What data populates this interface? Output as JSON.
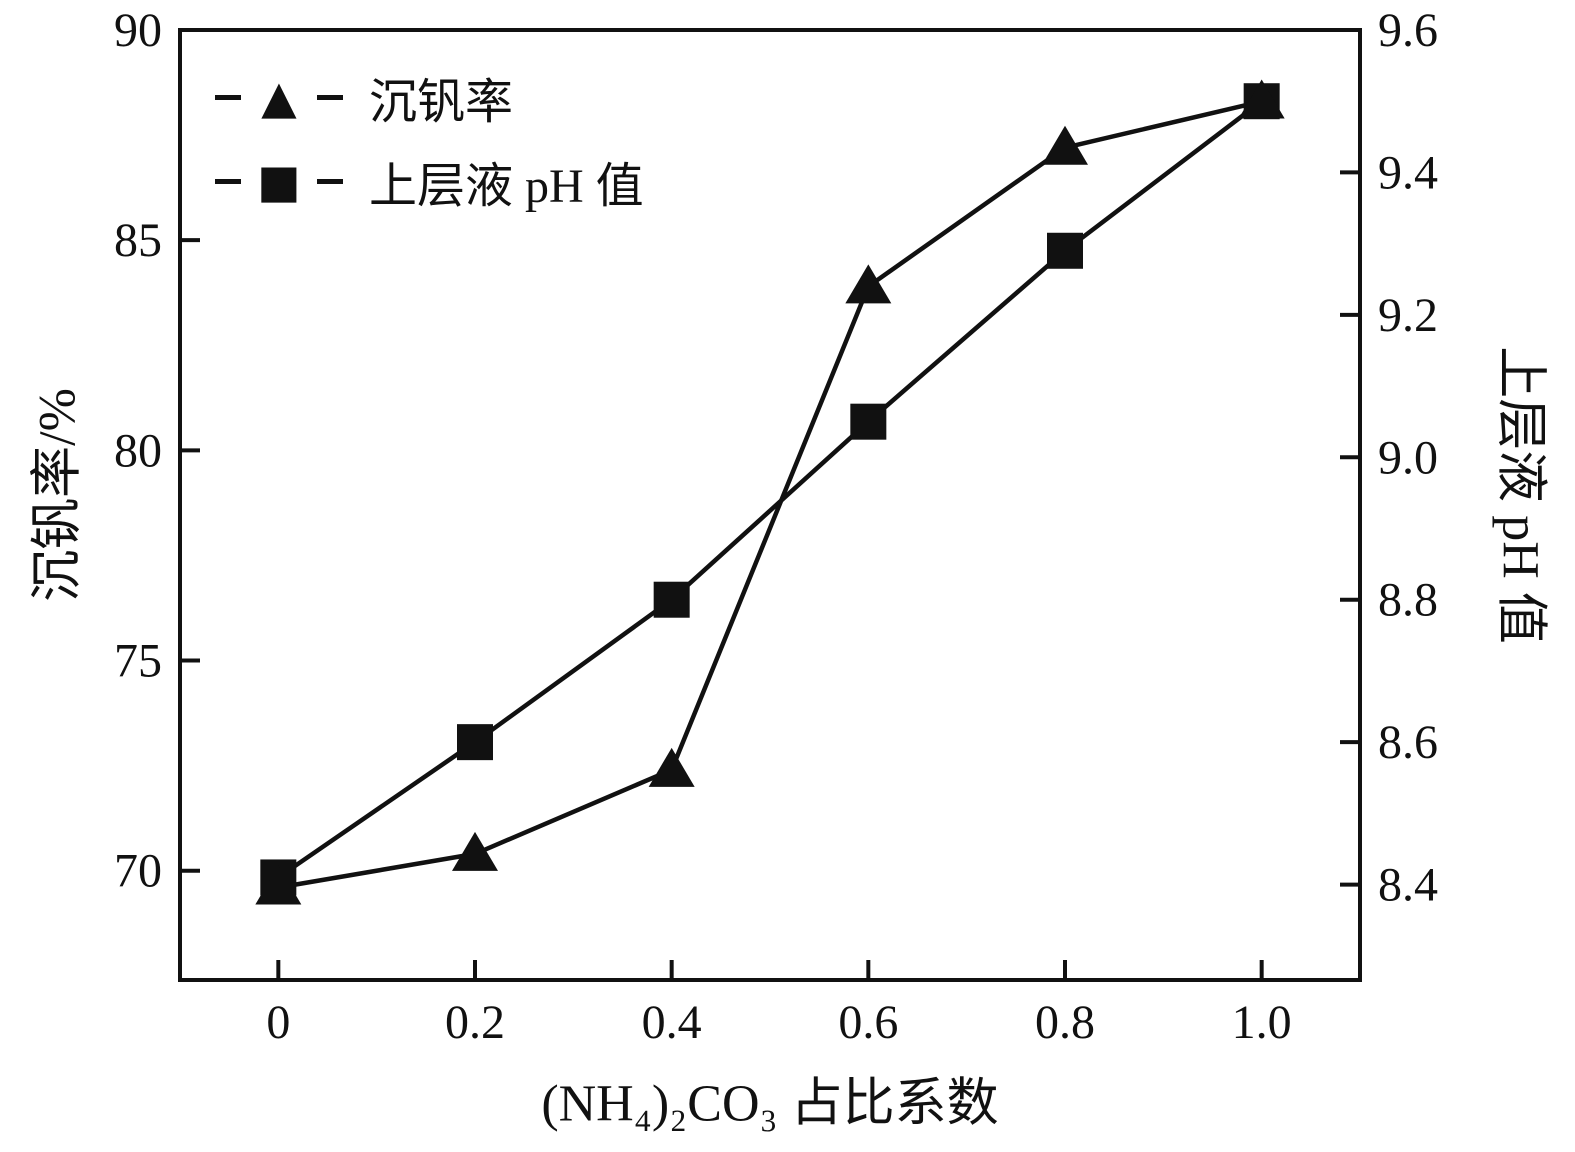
{
  "chart_data": {
    "type": "line",
    "x": [
      0,
      0.2,
      0.4,
      0.6,
      0.8,
      1.0
    ],
    "x_tick_labels": [
      "0",
      "0.2",
      "0.4",
      "0.6",
      "0.8",
      "1.0"
    ],
    "series": [
      {
        "name": "沉钒率",
        "axis": "left",
        "marker": "triangle",
        "values": [
          69.6,
          70.4,
          72.4,
          83.9,
          87.2,
          88.3
        ]
      },
      {
        "name": "上层液 pH 值",
        "axis": "right",
        "marker": "square",
        "values": [
          8.41,
          8.6,
          8.8,
          9.05,
          9.29,
          9.5
        ]
      }
    ],
    "title": "",
    "xlabel": "(NH₄)₂CO₃ 占比系数",
    "ylabel_left": "沉钒率/%",
    "ylabel_right": "上层液 pH 值",
    "xlim": [
      -0.1,
      1.1
    ],
    "ylim_left": [
      67.4,
      90
    ],
    "ylim_right": [
      8.266,
      9.6
    ],
    "yticks_left": [
      70,
      75,
      80,
      85,
      90
    ],
    "ytick_labels_left": [
      "70",
      "75",
      "80",
      "85",
      "90"
    ],
    "yticks_right": [
      8.4,
      8.6,
      8.8,
      9.0,
      9.2,
      9.4,
      9.6
    ],
    "ytick_labels_right": [
      "8.4",
      "8.6",
      "8.8",
      "9.0",
      "9.2",
      "9.4",
      "9.6"
    ],
    "grid": false,
    "legend_position": "top-left",
    "colors": {
      "line": "#111111",
      "marker": "#111111",
      "background": "#ffffff",
      "frame": "#111111"
    },
    "marker_glyphs": {
      "triangle": "▲",
      "square": "■"
    }
  }
}
